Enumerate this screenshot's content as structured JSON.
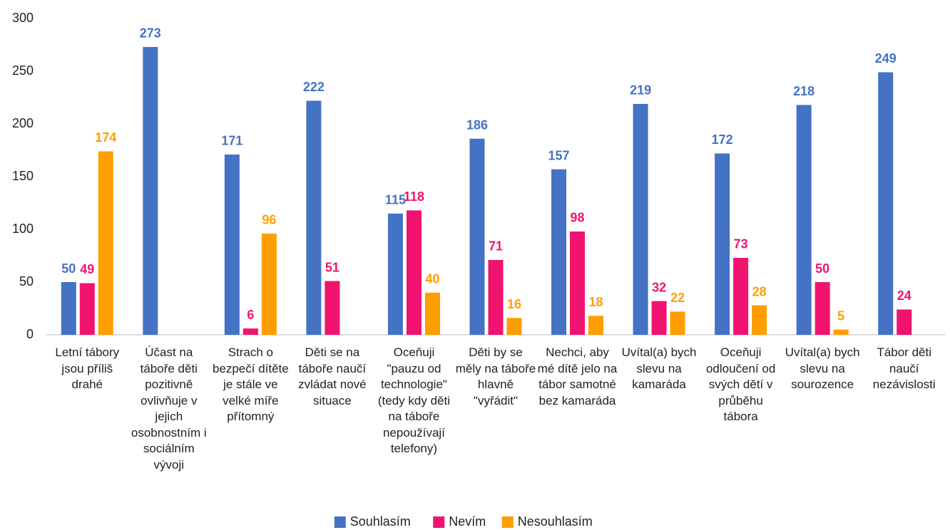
{
  "chart_data": {
    "type": "bar",
    "categories": [
      "Letní tábory jsou příliš drahé",
      "Účast na táboře děti pozitivně ovlivňuje v jejich osobnostním i sociálním vývoji",
      "Strach o bezpečí dítěte je stále ve velké míře přítomný",
      "Děti se na táboře naučí zvládat nové situace",
      "Oceňuji \"pauzu od technologie\" (tedy kdy děti na táboře nepoužívají telefony)",
      "Děti by se měly na táboře hlavně \"vyřádit\"",
      "Nechci, aby mé dítě jelo na tábor samotné bez kamaráda",
      "Uvítal(a) bych slevu na kamaráda",
      "Oceňuji odloučení od svých dětí v průběhu tábora",
      "Uvítal(a) bych slevu na sourozence",
      "Tábor děti naučí nezávislosti"
    ],
    "series": [
      {
        "name": "Souhlasím",
        "color": "#4472c4",
        "values": [
          50,
          273,
          171,
          222,
          115,
          186,
          157,
          219,
          172,
          218,
          249
        ]
      },
      {
        "name": "Nevím",
        "color": "#f0136f",
        "values": [
          49,
          null,
          6,
          51,
          118,
          71,
          98,
          32,
          73,
          50,
          24
        ]
      },
      {
        "name": "Nesouhlasím",
        "color": "#ff9e00",
        "values": [
          174,
          null,
          96,
          null,
          40,
          16,
          18,
          22,
          28,
          5,
          null
        ]
      }
    ],
    "ylim": [
      0,
      300
    ],
    "yticks": [
      0,
      50,
      100,
      150,
      200,
      250,
      300
    ],
    "grid": false,
    "legend": "bottom"
  }
}
